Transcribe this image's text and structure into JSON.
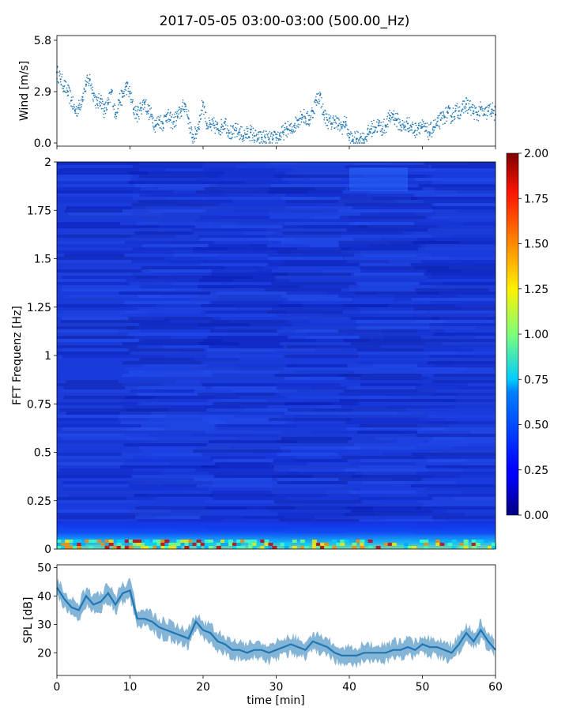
{
  "title": "2017-05-05 03:00-03:00 (500.00_Hz)",
  "chart_data": [
    {
      "type": "scatter",
      "name": "wind",
      "ylabel": "Wind [m/s]",
      "xlim": [
        0,
        60
      ],
      "ylim": [
        0,
        5.8
      ],
      "yticks": [
        "0.0",
        "2.9",
        "5.8"
      ],
      "color": "#1f77b4",
      "x": [
        0,
        0.5,
        1,
        1.5,
        2,
        2.5,
        3,
        3.5,
        4,
        4.5,
        5,
        5.5,
        6,
        6.5,
        7,
        7.5,
        8,
        8.5,
        9,
        9.5,
        10,
        10.5,
        11,
        11.5,
        12,
        12.5,
        13,
        13.5,
        14,
        14.5,
        15,
        15.5,
        16,
        16.5,
        17,
        17.5,
        18,
        18.5,
        19,
        19.5,
        20,
        20.5,
        21,
        21.5,
        22,
        22.5,
        23,
        23.5,
        24,
        24.5,
        25,
        25.5,
        26,
        26.5,
        27,
        27.5,
        28,
        28.5,
        29,
        29.5,
        30,
        30.5,
        31,
        31.5,
        32,
        32.5,
        33,
        33.5,
        34,
        34.5,
        35,
        35.5,
        36,
        36.5,
        37,
        37.5,
        38,
        38.5,
        39,
        39.5,
        40,
        40.5,
        41,
        41.5,
        42,
        42.5,
        43,
        43.5,
        44,
        44.5,
        45,
        45.5,
        46,
        46.5,
        47,
        47.5,
        48,
        48.5,
        49,
        49.5,
        50,
        50.5,
        51,
        51.5,
        52,
        52.5,
        53,
        53.5,
        54,
        54.5,
        55,
        55.5,
        56,
        56.5,
        57,
        57.5,
        58,
        58.5,
        59,
        59.5,
        60
      ],
      "y": [
        4.0,
        3.6,
        3.2,
        2.9,
        2.4,
        1.8,
        2.0,
        2.6,
        3.3,
        3.6,
        2.8,
        2.2,
        2.5,
        1.8,
        2.2,
        2.9,
        1.6,
        2.4,
        2.6,
        3.2,
        2.8,
        1.9,
        1.6,
        2.0,
        2.3,
        1.8,
        1.5,
        1.0,
        1.3,
        1.1,
        1.6,
        1.3,
        1.2,
        1.5,
        1.8,
        2.2,
        1.4,
        0.3,
        0.5,
        1.2,
        2.3,
        1.1,
        0.9,
        1.0,
        0.8,
        0.9,
        1.2,
        0.7,
        0.5,
        0.7,
        0.6,
        0.4,
        0.5,
        0.6,
        0.4,
        0.2,
        0.3,
        0.3,
        0.2,
        0.2,
        0.3,
        0.4,
        0.6,
        0.8,
        0.7,
        1.0,
        1.3,
        1.6,
        1.4,
        1.3,
        1.8,
        2.4,
        2.7,
        1.6,
        1.3,
        1.1,
        1.3,
        1.0,
        0.9,
        1.2,
        0.3,
        0.2,
        0.2,
        0.3,
        0.2,
        0.5,
        0.8,
        0.9,
        1.0,
        0.8,
        1.0,
        1.4,
        1.6,
        1.3,
        1.0,
        0.9,
        1.1,
        0.9,
        0.7,
        1.0,
        0.9,
        0.7,
        0.6,
        0.9,
        1.0,
        1.3,
        1.5,
        1.7,
        1.5,
        1.8,
        1.8,
        1.9,
        2.2,
        2.0,
        1.8,
        1.6,
        1.9,
        1.6,
        1.8,
        1.9,
        1.6
      ]
    },
    {
      "type": "heatmap",
      "name": "spectrogram",
      "ylabel": "FFT Frequenz [Hz]",
      "xlim": [
        0,
        60
      ],
      "ylim": [
        0,
        2
      ],
      "yticks": [
        "0",
        "0.25",
        "0.5",
        "0.75",
        "1",
        "1.25",
        "1.5",
        "1.75",
        "2"
      ],
      "colormap": "jet",
      "colorbar": {
        "min": 0,
        "max": 2,
        "ticks": [
          "0.00",
          "0.25",
          "0.50",
          "0.75",
          "1.00",
          "1.25",
          "1.50",
          "1.75",
          "2.00"
        ]
      },
      "typical_value": 0.15
    },
    {
      "type": "line",
      "name": "spl",
      "ylabel": "SPL [dB]",
      "xlabel": "time [min]",
      "xlim": [
        0,
        60
      ],
      "ylim": [
        12,
        51
      ],
      "yticks": [
        "20",
        "30",
        "40",
        "50"
      ],
      "xticks": [
        "0",
        "10",
        "20",
        "30",
        "40",
        "50",
        "60"
      ],
      "color": "#1f77b4",
      "x": [
        0,
        1,
        2,
        3,
        4,
        5,
        6,
        7,
        8,
        9,
        10,
        11,
        12,
        13,
        14,
        15,
        16,
        17,
        18,
        19,
        20,
        21,
        22,
        23,
        24,
        25,
        26,
        27,
        28,
        29,
        30,
        31,
        32,
        33,
        34,
        35,
        36,
        37,
        38,
        39,
        40,
        41,
        42,
        43,
        44,
        45,
        46,
        47,
        48,
        49,
        50,
        51,
        52,
        53,
        54,
        55,
        56,
        57,
        58,
        59,
        60
      ],
      "y": [
        43,
        39,
        36,
        35,
        40,
        37,
        38,
        41,
        37,
        41,
        42,
        32,
        32,
        31,
        29,
        28,
        27,
        26,
        25,
        31,
        28,
        27,
        24,
        23,
        21,
        21,
        20,
        21,
        21,
        20,
        21,
        22,
        23,
        22,
        21,
        24,
        23,
        22,
        20,
        19,
        19,
        19,
        20,
        20,
        20,
        20,
        21,
        21,
        22,
        21,
        23,
        22,
        22,
        21,
        20,
        23,
        27,
        24,
        28,
        24,
        21
      ]
    }
  ]
}
